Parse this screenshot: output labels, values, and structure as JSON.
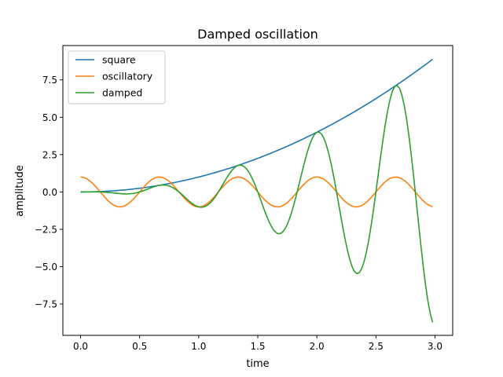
{
  "chart_data": {
    "type": "line",
    "title": "Damped oscillation",
    "xlabel": "time",
    "ylabel": "amplitude",
    "xlim": [
      -0.15,
      3.15
    ],
    "ylim": [
      -9.6,
      9.8
    ],
    "x_ticks": [
      0.0,
      0.5,
      1.0,
      1.5,
      2.0,
      2.5,
      3.0
    ],
    "x_tick_labels": [
      "0.0",
      "0.5",
      "1.0",
      "1.5",
      "2.0",
      "2.5",
      "3.0"
    ],
    "y_ticks": [
      -7.5,
      -5.0,
      -2.5,
      0.0,
      2.5,
      5.0,
      7.5
    ],
    "y_tick_labels": [
      "−7.5",
      "−5.0",
      "−2.5",
      "0.0",
      "2.5",
      "5.0",
      "7.5"
    ],
    "grid": false,
    "legend_position": "upper left",
    "x_range": [
      0.0,
      2.98
    ],
    "sample_step": 0.02,
    "series": [
      {
        "name": "square",
        "formula": "t^2",
        "color": "#1f77b4",
        "y_at_peaks": [
          0,
          0.444,
          1.778,
          4.0,
          7.111
        ],
        "y_end": 8.88
      },
      {
        "name": "oscillatory",
        "formula": "cos(3*pi*t)",
        "color": "#ff7f0e",
        "amplitude": 1.0,
        "period": 0.667
      },
      {
        "name": "damped",
        "formula": "t^2 * cos(3*pi*t)",
        "color": "#2ca02c",
        "peaks": [
          {
            "t": 0.667,
            "y": 0.44
          },
          {
            "t": 1.0,
            "y": -1.0
          },
          {
            "t": 1.333,
            "y": 1.78
          },
          {
            "t": 1.667,
            "y": -2.78
          },
          {
            "t": 2.0,
            "y": 4.0
          },
          {
            "t": 2.333,
            "y": -5.44
          },
          {
            "t": 2.667,
            "y": 7.11
          }
        ],
        "y_end": -8.72
      }
    ]
  }
}
